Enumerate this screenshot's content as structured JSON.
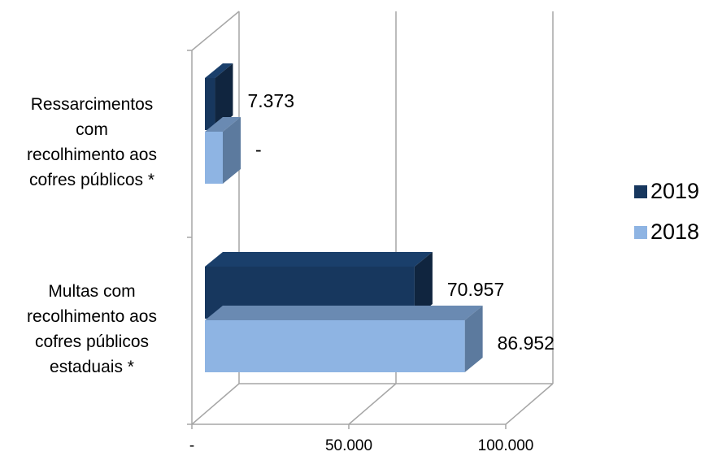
{
  "chart_data": {
    "type": "bar",
    "orientation": "horizontal",
    "style": "3d",
    "categories": [
      [
        "Ressarcimentos",
        "com",
        "recolhimento aos",
        "cofres públicos *"
      ],
      [
        "Multas com",
        "recolhimento aos",
        "cofres públicos",
        "estaduais *"
      ]
    ],
    "series": [
      {
        "name": "2019",
        "values": [
          7373,
          70957
        ],
        "labels": [
          "7.373",
          "70.957"
        ]
      },
      {
        "name": "2018",
        "values": [
          0,
          86952
        ],
        "labels": [
          "-",
          "86.952"
        ]
      }
    ],
    "x_ticks": [
      "-",
      "50.000",
      "100.000"
    ],
    "xlim": [
      0,
      100000
    ],
    "grid": true,
    "legend_position": "right",
    "colors": {
      "2019": {
        "front": "#17375E",
        "top": "#1A3F6B",
        "side": "#10253F"
      },
      "2018": {
        "front": "#8EB4E3",
        "top": "#6A8AB2",
        "side": "#5C7A9E"
      },
      "axis": "#A6A6A6"
    }
  }
}
